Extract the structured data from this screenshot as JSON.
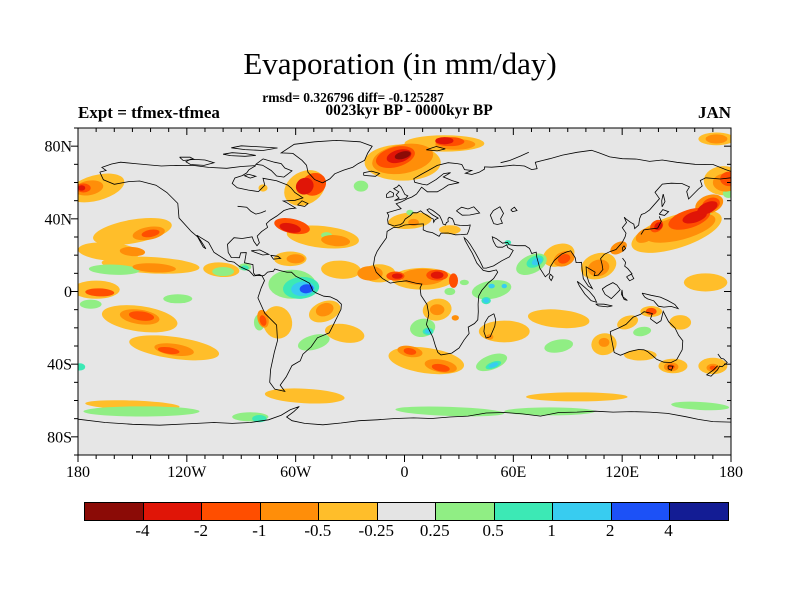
{
  "header": {
    "title": "Evaporation (in mm/day)",
    "stats_line": "rmsd= 0.326796 diff= -0.125287",
    "period_line": "0023kyr BP - 0000kyr BP",
    "experiment_label": "Expt = tfmex-tfmea",
    "month_label": "JAN"
  },
  "chart_data": {
    "type": "heatmap",
    "subtype": "filled-contour-world-map",
    "title": "Evaporation (in mm/day)",
    "subtitle": "0023kyr BP - 0000kyr BP",
    "stats": {
      "rmsd": 0.326796,
      "diff": -0.125287
    },
    "experiment": "tfmex-tfmea",
    "month": "JAN",
    "units": "mm/day",
    "projection": "equirectangular",
    "lon_range": [
      -180,
      180
    ],
    "lat_range": [
      -90,
      90
    ],
    "x_tick_lons": [
      -180,
      -120,
      -60,
      0,
      60,
      120,
      180
    ],
    "x_tick_labels": [
      "180",
      "120W",
      "60W",
      "0",
      "60E",
      "120E",
      "180"
    ],
    "y_tick_lats": [
      80,
      40,
      0,
      -40,
      -80
    ],
    "y_tick_labels": [
      "80N",
      "40N",
      "0",
      "40S",
      "80S"
    ],
    "minor_tick_step_deg": 10,
    "levels": [
      -4,
      -2,
      -1,
      -0.5,
      -0.25,
      0.25,
      0.5,
      1,
      2,
      4
    ],
    "colorbar_labels": [
      "-4",
      "-2",
      "-1",
      "-0.5",
      "-0.25",
      "0.25",
      "0.5",
      "1",
      "2",
      "4"
    ],
    "colorbar_cells": [
      "below_-4",
      "-4_-2",
      "-2_-1",
      "-1_-0.5",
      "-0.5_-0.25",
      "-0.25_0.25",
      "0.25_0.5",
      "0.5_1",
      "1_2",
      "2_4",
      "above_4"
    ],
    "palette": {
      "below_-4": "#8B0B06",
      "-4_-2": "#E01507",
      "-2_-1": "#FF4E00",
      "-1_-0.5": "#FF8E09",
      "-0.5_-0.25": "#FFBE2A",
      "-0.25_0.25": "#E4E4E4",
      "0.25_0.5": "#90EE84",
      "0.5_1": "#3CE9B5",
      "1_2": "#38CCF0",
      "2_4": "#1C51F7",
      "above_4": "#131C94"
    },
    "map_background": "#E6E6E6",
    "regions": [
      {
        "level": "-0.5_-0.25",
        "blobs": [
          [
            -170,
            57,
            16,
            7,
            -15
          ],
          [
            176,
            61,
            11,
            8,
            0
          ],
          [
            -150,
            33,
            22,
            6.5,
            -10
          ],
          [
            -163,
            22,
            17,
            5,
            4
          ],
          [
            -140,
            14.5,
            27,
            4.5,
            3
          ],
          [
            -101,
            12,
            10,
            4,
            4
          ],
          [
            -170,
            1,
            13,
            5,
            0
          ],
          [
            -146,
            -15,
            21,
            7,
            8
          ],
          [
            -127,
            -31,
            25,
            6,
            8
          ],
          [
            -55,
            -57.5,
            22,
            4,
            3
          ],
          [
            -150,
            -62.5,
            26,
            2.5,
            2
          ],
          [
            95,
            -58,
            28,
            2.5,
            0
          ],
          [
            -33,
            -23,
            11,
            5,
            10
          ],
          [
            -44,
            -11,
            9,
            5.5,
            -20
          ],
          [
            -70,
            -17,
            8,
            9,
            -15
          ],
          [
            -63,
            18,
            9,
            4,
            0
          ],
          [
            -35,
            12,
            11,
            5,
            3
          ],
          [
            -14,
            10,
            9,
            5,
            0
          ],
          [
            -45,
            30,
            20,
            6,
            6
          ],
          [
            -55,
            57,
            12,
            9,
            -30
          ],
          [
            -1,
            71,
            21,
            10,
            0
          ],
          [
            22,
            81.5,
            22,
            4.5,
            0
          ],
          [
            172,
            84,
            10,
            3.5,
            0
          ],
          [
            3,
            39,
            12,
            4.5,
            -5
          ],
          [
            25,
            34,
            6,
            2.5,
            0
          ],
          [
            10,
            7,
            17,
            6,
            0
          ],
          [
            18,
            -10,
            8,
            6,
            -10
          ],
          [
            12,
            -38,
            21,
            7,
            8
          ],
          [
            55,
            -22,
            14,
            6,
            0
          ],
          [
            85,
            -15,
            17,
            5,
            5
          ],
          [
            85,
            20,
            9,
            6,
            -20
          ],
          [
            107,
            14,
            10,
            7,
            -18
          ],
          [
            150,
            33,
            26,
            9,
            -18
          ],
          [
            166,
            5,
            12,
            5,
            0
          ],
          [
            152,
            -17,
            6,
            4,
            0
          ],
          [
            123,
            -17,
            6,
            3.5,
            -20
          ],
          [
            110,
            -29,
            7,
            6,
            -10
          ],
          [
            130,
            -35,
            9,
            3,
            0
          ],
          [
            148,
            -41,
            8,
            4,
            0
          ],
          [
            170,
            -41,
            8,
            4.5,
            0
          ],
          [
            -78,
            57,
            2.5,
            2,
            0
          ],
          [
            136,
            -11,
            6,
            3,
            0
          ]
        ]
      },
      {
        "level": "0.25_0.5",
        "blobs": [
          [
            -160,
            12,
            14,
            2.8,
            2
          ],
          [
            -100,
            11,
            6,
            2.5,
            0
          ],
          [
            -125,
            -4,
            8,
            2.5,
            0
          ],
          [
            -173,
            -7,
            6,
            2.5,
            0
          ],
          [
            -80,
            -17,
            3,
            4.5,
            0
          ],
          [
            -50,
            -28,
            9,
            4,
            -15
          ],
          [
            -62,
            4,
            13,
            8,
            0
          ],
          [
            -88,
            13.5,
            3.5,
            2,
            0
          ],
          [
            -24,
            58,
            4,
            3,
            0
          ],
          [
            -43,
            31,
            3,
            1.7,
            0
          ],
          [
            10,
            -20,
            7,
            5,
            -10
          ],
          [
            48,
            1,
            11,
            5,
            -10
          ],
          [
            70,
            15,
            9,
            5,
            -25
          ],
          [
            48,
            -39,
            9,
            4,
            -20
          ],
          [
            85,
            -30,
            8,
            3.5,
            -10
          ],
          [
            131,
            -22,
            5,
            2.5,
            -10
          ],
          [
            25,
            0,
            3,
            2,
            0
          ],
          [
            33,
            5,
            2.5,
            1.5,
            0
          ],
          [
            166,
            44,
            3.5,
            2.5,
            0
          ],
          [
            178.5,
            54,
            3,
            2.5,
            0
          ],
          [
            3,
            43.5,
            2,
            1.5,
            0
          ],
          [
            -145,
            -66,
            32,
            2.8,
            0
          ],
          [
            -85,
            -69,
            10,
            2.5,
            0
          ],
          [
            25,
            -66,
            30,
            2.5,
            2
          ],
          [
            80,
            -66,
            25,
            2.2,
            0
          ],
          [
            163,
            -63,
            16,
            2.2,
            3
          ]
        ]
      },
      {
        "level": "0.5_1",
        "blobs": [
          [
            -57,
            2,
            10,
            6,
            -5
          ],
          [
            -88,
            13,
            2.2,
            1.4,
            0
          ],
          [
            13,
            -22,
            3,
            2,
            0
          ],
          [
            45,
            -5,
            2.6,
            2,
            0
          ],
          [
            49,
            -40.5,
            4.5,
            1.8,
            -20
          ],
          [
            57,
            27,
            1.8,
            1.3,
            0
          ],
          [
            72,
            16.5,
            5,
            3,
            -25
          ],
          [
            -80,
            -70,
            4,
            2,
            0
          ],
          [
            -179,
            -41.5,
            3,
            2,
            0
          ]
        ]
      },
      {
        "level": "-1_-0.5",
        "blobs": [
          [
            -174,
            57,
            8,
            4,
            -10
          ],
          [
            177,
            60,
            7,
            5,
            0
          ],
          [
            -141,
            32,
            9,
            3.5,
            -10
          ],
          [
            -150,
            22,
            7,
            2.5,
            4
          ],
          [
            -138,
            13,
            12,
            2.5,
            3
          ],
          [
            -146,
            -14,
            11,
            4,
            8
          ],
          [
            -127,
            -32,
            11,
            3.2,
            8
          ],
          [
            -38,
            28,
            8,
            3,
            5
          ],
          [
            -60,
            18,
            5,
            2.5,
            0
          ],
          [
            -19,
            10,
            7,
            4,
            0
          ],
          [
            10,
            8,
            12,
            4.5,
            0
          ],
          [
            18,
            -10,
            4,
            3,
            0
          ],
          [
            3,
            -33,
            7,
            3,
            10
          ],
          [
            20,
            -41,
            9,
            3.5,
            10
          ],
          [
            47,
            -25,
            2,
            1.5,
            0
          ],
          [
            28,
            -14.5,
            2,
            1.5,
            0
          ],
          [
            88,
            18,
            6,
            4,
            -20
          ],
          [
            107,
            13,
            6,
            4.5,
            -15
          ],
          [
            118,
            24,
            5,
            3,
            -30
          ],
          [
            152,
            35,
            20,
            6.5,
            -15
          ],
          [
            133,
            31,
            6,
            3.5,
            -30
          ],
          [
            168,
            48,
            8,
            5,
            -20
          ],
          [
            -1,
            73,
            17,
            8,
            -10
          ],
          [
            28,
            81,
            11,
            3,
            0
          ],
          [
            5,
            38,
            3,
            2,
            0
          ],
          [
            172,
            84,
            6,
            2.5,
            0
          ],
          [
            110,
            -28,
            3,
            2.5,
            0
          ],
          [
            147,
            -41.5,
            4,
            2.5,
            0
          ],
          [
            170,
            -42,
            3.5,
            2.2,
            0
          ],
          [
            -78,
            -15,
            3,
            5,
            -15
          ],
          [
            -44,
            -10,
            5,
            3.5,
            -20
          ]
        ]
      },
      {
        "level": "1_2",
        "blobs": [
          [
            -56,
            1.5,
            6.5,
            4,
            -5
          ],
          [
            73,
            16.5,
            3,
            1.8,
            -25
          ],
          [
            13,
            -22,
            1.8,
            1.2,
            0
          ],
          [
            45,
            -5,
            1.7,
            1.3,
            0
          ],
          [
            49,
            -40.5,
            2.8,
            1.2,
            -20
          ],
          [
            48,
            3,
            1.8,
            1.3,
            0
          ],
          [
            55,
            3,
            1.5,
            1.2,
            0
          ]
        ]
      },
      {
        "level": "-2_-1",
        "blobs": [
          [
            -177,
            57,
            4,
            2.5,
            0
          ],
          [
            179,
            62,
            5,
            4,
            0
          ],
          [
            -168,
            -0.5,
            8,
            2.2,
            2
          ],
          [
            -145,
            -13.5,
            7,
            2.5,
            8
          ],
          [
            -140,
            32,
            5,
            2,
            -10
          ],
          [
            -62,
            36,
            10,
            4,
            12
          ],
          [
            -50,
            59,
            7,
            6,
            -30
          ],
          [
            -5,
            74,
            11,
            5.5,
            -15
          ],
          [
            25,
            82.5,
            8,
            2.5,
            0
          ],
          [
            -5,
            8.5,
            5,
            2.5,
            0
          ],
          [
            18,
            9,
            6,
            3,
            0
          ],
          [
            27,
            6,
            2.5,
            4,
            0
          ],
          [
            88,
            18,
            3.5,
            2.5,
            -20
          ],
          [
            157,
            40,
            12,
            5,
            -18
          ],
          [
            139,
            36,
            4,
            3,
            -40
          ],
          [
            169,
            48,
            5,
            3.5,
            -20
          ],
          [
            -78,
            -16,
            1.8,
            3,
            -15
          ],
          [
            136,
            -11,
            3,
            2,
            0
          ],
          [
            147,
            -41.5,
            2,
            1.3,
            0
          ],
          [
            20,
            -42,
            5,
            2,
            10
          ],
          [
            3,
            -33,
            3.5,
            1.8,
            10
          ],
          [
            170,
            -42,
            1.8,
            1.2,
            0
          ],
          [
            -130,
            -32.5,
            6,
            1.8,
            8
          ]
        ]
      },
      {
        "level": "-4_-2",
        "blobs": [
          [
            -55,
            58,
            5,
            4.5,
            -30
          ],
          [
            -63,
            35,
            6,
            2.5,
            12
          ],
          [
            -3,
            74.5,
            7,
            3.5,
            -15
          ],
          [
            160,
            41,
            7,
            3,
            -18
          ],
          [
            167,
            46,
            6,
            3,
            -25
          ],
          [
            140,
            36,
            2.5,
            2,
            -40
          ],
          [
            18,
            9,
            3.5,
            2,
            0
          ],
          [
            -4,
            8.5,
            3,
            1.5,
            0
          ],
          [
            -178,
            57,
            2,
            1.5,
            0
          ],
          [
            22,
            83,
            5,
            2,
            0
          ]
        ]
      },
      {
        "level": "2_4",
        "blobs": [
          [
            -54,
            1.5,
            3.8,
            2.5,
            -5
          ]
        ]
      },
      {
        "level": "below_-4",
        "blobs": [
          [
            -1,
            75,
            4.5,
            2,
            -15
          ]
        ]
      }
    ]
  }
}
